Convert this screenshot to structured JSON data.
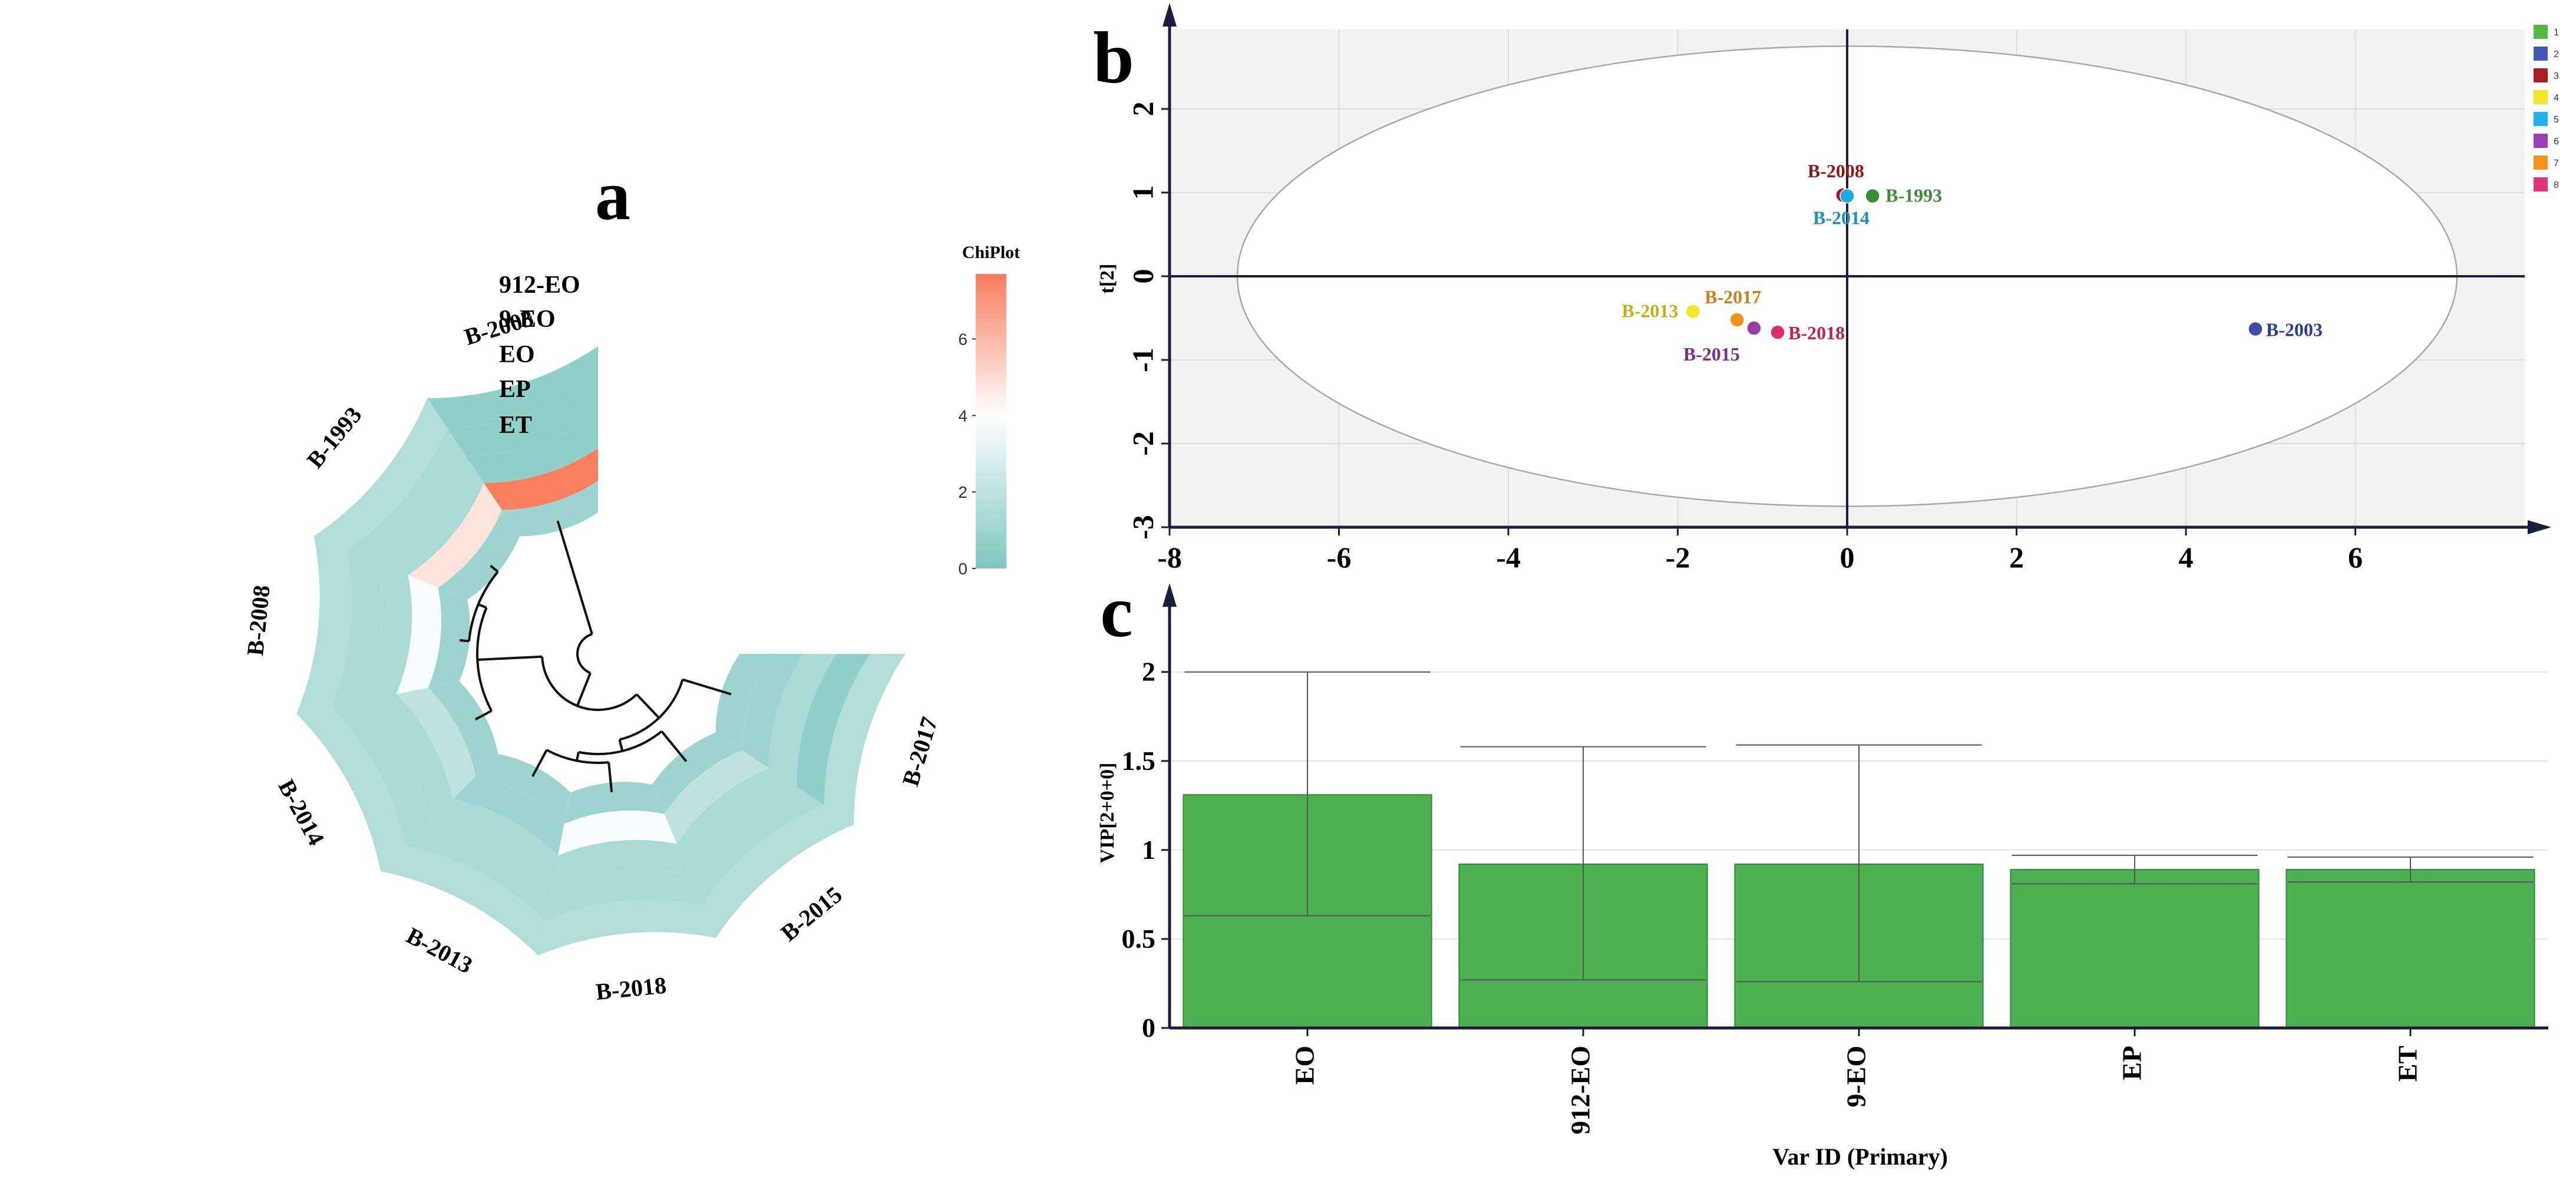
{
  "panels": {
    "a": "a",
    "b": "b",
    "c": "c"
  },
  "chart_data": [
    {
      "panel": "a",
      "type": "heatmap",
      "layout": "circular",
      "rows": [
        "912-EO",
        "9-EO",
        "EO",
        "EP",
        "ET"
      ],
      "samples": [
        "B-2003",
        "B-1993",
        "B-2008",
        "B-2014",
        "B-2013",
        "B-2018",
        "B-2015",
        "B-2017"
      ],
      "values": [
        [
          0.6,
          1.6,
          1.6,
          1.6,
          1.6,
          1.6,
          1.6,
          1.6
        ],
        [
          0.6,
          1.4,
          1.4,
          1.4,
          1.4,
          1.4,
          1.4,
          0.6
        ],
        [
          0.6,
          1.4,
          1.4,
          1.4,
          1.4,
          1.4,
          1.4,
          1.4
        ],
        [
          7.6,
          4.8,
          3.8,
          2.0,
          1.0,
          3.8,
          2.0,
          1.0
        ],
        [
          1.0,
          1.0,
          1.0,
          1.0,
          1.0,
          1.0,
          1.0,
          1.0
        ]
      ],
      "colorbar": {
        "title": "ChiPlot",
        "min": 0,
        "max": 7.7,
        "ticks": [
          0,
          2,
          4,
          6
        ],
        "colors": [
          "#7ec6c0",
          "#ffffff",
          "#f87c5c"
        ]
      },
      "dendrogram": true
    },
    {
      "panel": "b",
      "type": "scatter",
      "points": [
        {
          "label": "B-2008",
          "x": -0.05,
          "y": 0.97,
          "color": "#a31520",
          "group": "3"
        },
        {
          "label": "B-1993",
          "x": 0.3,
          "y": 0.96,
          "color": "#3a8e35",
          "group": "1"
        },
        {
          "label": "B-2014",
          "x": 0.0,
          "y": 0.96,
          "color": "#1fa7e1",
          "group": "5"
        },
        {
          "label": "B-2013",
          "x": -1.82,
          "y": -0.42,
          "color": "#f4e62b",
          "group": "4"
        },
        {
          "label": "B-2017",
          "x": -1.3,
          "y": -0.52,
          "color": "#f5911e",
          "group": "7"
        },
        {
          "label": "B-2015",
          "x": -1.1,
          "y": -0.62,
          "color": "#9b3fa8",
          "group": "6"
        },
        {
          "label": "B-2018",
          "x": -0.82,
          "y": -0.67,
          "color": "#dc2f6c",
          "group": "8"
        },
        {
          "label": "B-2003",
          "x": 4.82,
          "y": -0.63,
          "color": "#3d4aa6",
          "group": "2"
        }
      ],
      "label_colors": {
        "B-2008": "#8b1a1a",
        "B-1993": "#3f8f38",
        "B-2014": "#1f8fb2",
        "B-2013": "#c4ae1d",
        "B-2017": "#c7801a",
        "B-2015": "#7a2f8f",
        "B-2018": "#c1234f",
        "B-2003": "#2f3c96"
      },
      "ylabel": "t[2]",
      "xlim": [
        -8,
        8
      ],
      "ylim": [
        -3,
        3
      ],
      "xticks": [
        -8,
        -6,
        -4,
        -2,
        0,
        2,
        4,
        6
      ],
      "yticks": [
        -3,
        -2,
        -1,
        0,
        1,
        2
      ],
      "ellipse": {
        "rx": 7.2,
        "ry": 2.75
      },
      "legend": {
        "position": "top-right",
        "entries": [
          "1",
          "2",
          "3",
          "4",
          "5",
          "6",
          "7",
          "8"
        ],
        "colors": [
          "#55b948",
          "#4857b7",
          "#b01e24",
          "#f5e628",
          "#22b1e8",
          "#9c3fb3",
          "#f7921e",
          "#e43276"
        ]
      },
      "grid": true
    },
    {
      "panel": "c",
      "type": "bar",
      "categories": [
        "EO",
        "912-EO",
        "9-EO",
        "EP",
        "ET"
      ],
      "values": [
        1.31,
        0.92,
        0.92,
        0.89,
        0.89
      ],
      "error_low": [
        0.63,
        0.27,
        0.26,
        0.81,
        0.82
      ],
      "error_high": [
        2.0,
        1.58,
        1.59,
        0.97,
        0.96
      ],
      "xlabel": "Var ID (Primary)",
      "ylabel": "VIP[2+0+0]",
      "ylim": [
        0,
        2.35
      ],
      "yticks": [
        "0",
        "0.5",
        "1",
        "1.5",
        "2"
      ],
      "bar_color": "#4caf50"
    }
  ]
}
